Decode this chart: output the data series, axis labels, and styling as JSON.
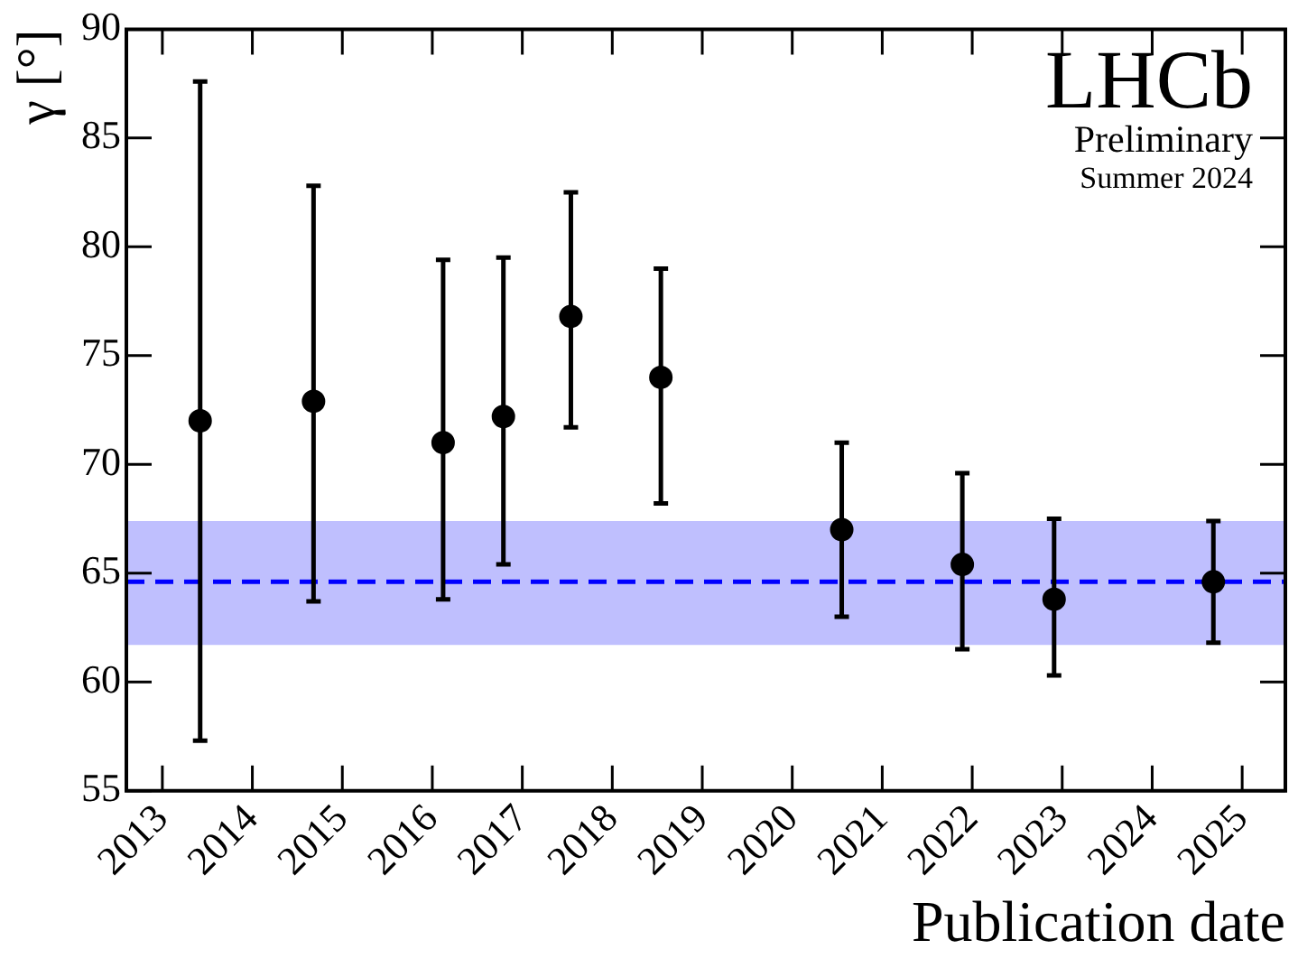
{
  "chart_data": {
    "type": "scatter",
    "xlabel": "Publication date",
    "ylabel": "γ [°]",
    "x": [
      2013.42,
      2014.68,
      2016.12,
      2016.79,
      2017.54,
      2018.54,
      2020.55,
      2021.89,
      2022.91,
      2024.68
    ],
    "series": [
      {
        "color": "#000000",
        "values": [
          72.0,
          72.9,
          71.0,
          72.2,
          76.8,
          74.0,
          67.0,
          65.4,
          63.8,
          64.6
        ],
        "errors": [
          [
            57.3,
            87.6
          ],
          [
            63.7,
            82.8
          ],
          [
            63.8,
            79.4
          ],
          [
            65.4,
            79.5
          ],
          [
            71.7,
            82.5
          ],
          [
            68.2,
            79.0
          ],
          [
            63.0,
            71.0
          ],
          [
            61.5,
            69.6
          ],
          [
            60.3,
            67.5
          ],
          [
            61.8,
            67.4
          ]
        ]
      }
    ],
    "xlim": [
      2012.6,
      2025.48
    ],
    "xticks": [
      2013,
      2014,
      2015,
      2016,
      2017,
      2018,
      2019,
      2020,
      2021,
      2022,
      2023,
      2024,
      2025
    ],
    "ylim": [
      55,
      90
    ],
    "yticks": [
      55,
      60,
      65,
      70,
      75,
      80,
      85,
      90
    ],
    "ref_lines": [
      {
        "axis": "y",
        "value": 64.6,
        "color": "#0000ff",
        "line_style": "dashed"
      }
    ],
    "bands": [
      {
        "axis": "y",
        "from": 61.7,
        "to": 67.4,
        "color": "#bfbffe"
      }
    ],
    "annotations": [
      "LHCb",
      "Preliminary",
      "Summer 2024"
    ],
    "marker": "circle",
    "grid": false,
    "legend": false
  }
}
